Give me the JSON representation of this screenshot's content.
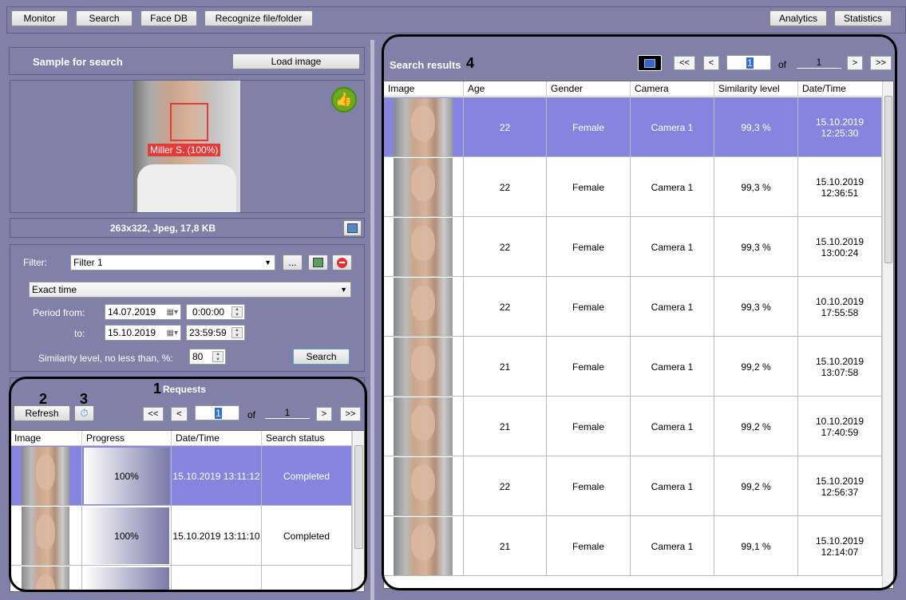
{
  "toolbar": {
    "monitor": "Monitor",
    "search": "Search",
    "face_db": "Face DB",
    "recognize": "Recognize file/folder",
    "analytics": "Analytics",
    "statistics": "Statistics"
  },
  "sample": {
    "title": "Sample for search",
    "load_image": "Load image",
    "face_label": "Miller S. (100%)",
    "file_info": "263x322, Jpeg, 17,8 KB",
    "status_icon": "thumbs-up-icon"
  },
  "filter": {
    "label": "Filter:",
    "value": "Filter 1",
    "more": "...",
    "mode": "Exact time",
    "period_from_label": "Period from:",
    "to_label": "to:",
    "date_from": "14.07.2019",
    "time_from": "0:00:00",
    "date_to": "15.10.2019",
    "time_to": "23:59:59",
    "similarity_label": "Similarity level, no less than, %:",
    "similarity_value": "80",
    "search_button": "Search"
  },
  "requests": {
    "title": "Requests",
    "refresh": "Refresh",
    "first": "<<",
    "prev": "<",
    "page": "1",
    "of": "of",
    "total": "1",
    "next": ">",
    "last": ">>",
    "columns": [
      "Image",
      "Progress",
      "Date/Time",
      "Search status"
    ],
    "rows": [
      {
        "progress": "100%",
        "datetime": "15.10.2019 13:11:12",
        "status": "Completed",
        "selected": true
      },
      {
        "progress": "100%",
        "datetime": "15.10.2019 13:11:10",
        "status": "Completed",
        "selected": false
      },
      {
        "progress": "",
        "datetime": "",
        "status": "",
        "selected": false
      }
    ]
  },
  "results": {
    "title": "Search results",
    "first": "<<",
    "prev": "<",
    "page": "1",
    "of": "of",
    "total": "1",
    "next": ">",
    "last": ">>",
    "columns": [
      "Image",
      "Age",
      "Gender",
      "Camera",
      "Similarity level",
      "Date/Time"
    ],
    "rows": [
      {
        "age": "22",
        "gender": "Female",
        "camera": "Camera 1",
        "similarity": "99,3 %",
        "date": "15.10.2019",
        "time": "12:25:30",
        "selected": true
      },
      {
        "age": "22",
        "gender": "Female",
        "camera": "Camera 1",
        "similarity": "99,3 %",
        "date": "15.10.2019",
        "time": "12:36:51",
        "selected": false
      },
      {
        "age": "22",
        "gender": "Female",
        "camera": "Camera 1",
        "similarity": "99,3 %",
        "date": "15.10.2019",
        "time": "13:00:24",
        "selected": false
      },
      {
        "age": "22",
        "gender": "Female",
        "camera": "Camera 1",
        "similarity": "99,3 %",
        "date": "10.10.2019",
        "time": "17:55:58",
        "selected": false
      },
      {
        "age": "21",
        "gender": "Female",
        "camera": "Camera 1",
        "similarity": "99,2 %",
        "date": "15.10.2019",
        "time": "13:07:58",
        "selected": false
      },
      {
        "age": "21",
        "gender": "Female",
        "camera": "Camera 1",
        "similarity": "99,2 %",
        "date": "10.10.2019",
        "time": "17:40:59",
        "selected": false
      },
      {
        "age": "22",
        "gender": "Female",
        "camera": "Camera 1",
        "similarity": "99,2 %",
        "date": "15.10.2019",
        "time": "12:56:37",
        "selected": false
      },
      {
        "age": "21",
        "gender": "Female",
        "camera": "Camera 1",
        "similarity": "99,1 %",
        "date": "15.10.2019",
        "time": "12:14:07",
        "selected": false
      }
    ]
  },
  "annotations": {
    "a1": "1",
    "a2": "2",
    "a3": "3",
    "a4": "4"
  },
  "colors": {
    "background": "#8080a8",
    "selected_row": "#8585e0",
    "thumbs_up": "#6aaa1e",
    "face_label_bg": "#e23b3b"
  }
}
